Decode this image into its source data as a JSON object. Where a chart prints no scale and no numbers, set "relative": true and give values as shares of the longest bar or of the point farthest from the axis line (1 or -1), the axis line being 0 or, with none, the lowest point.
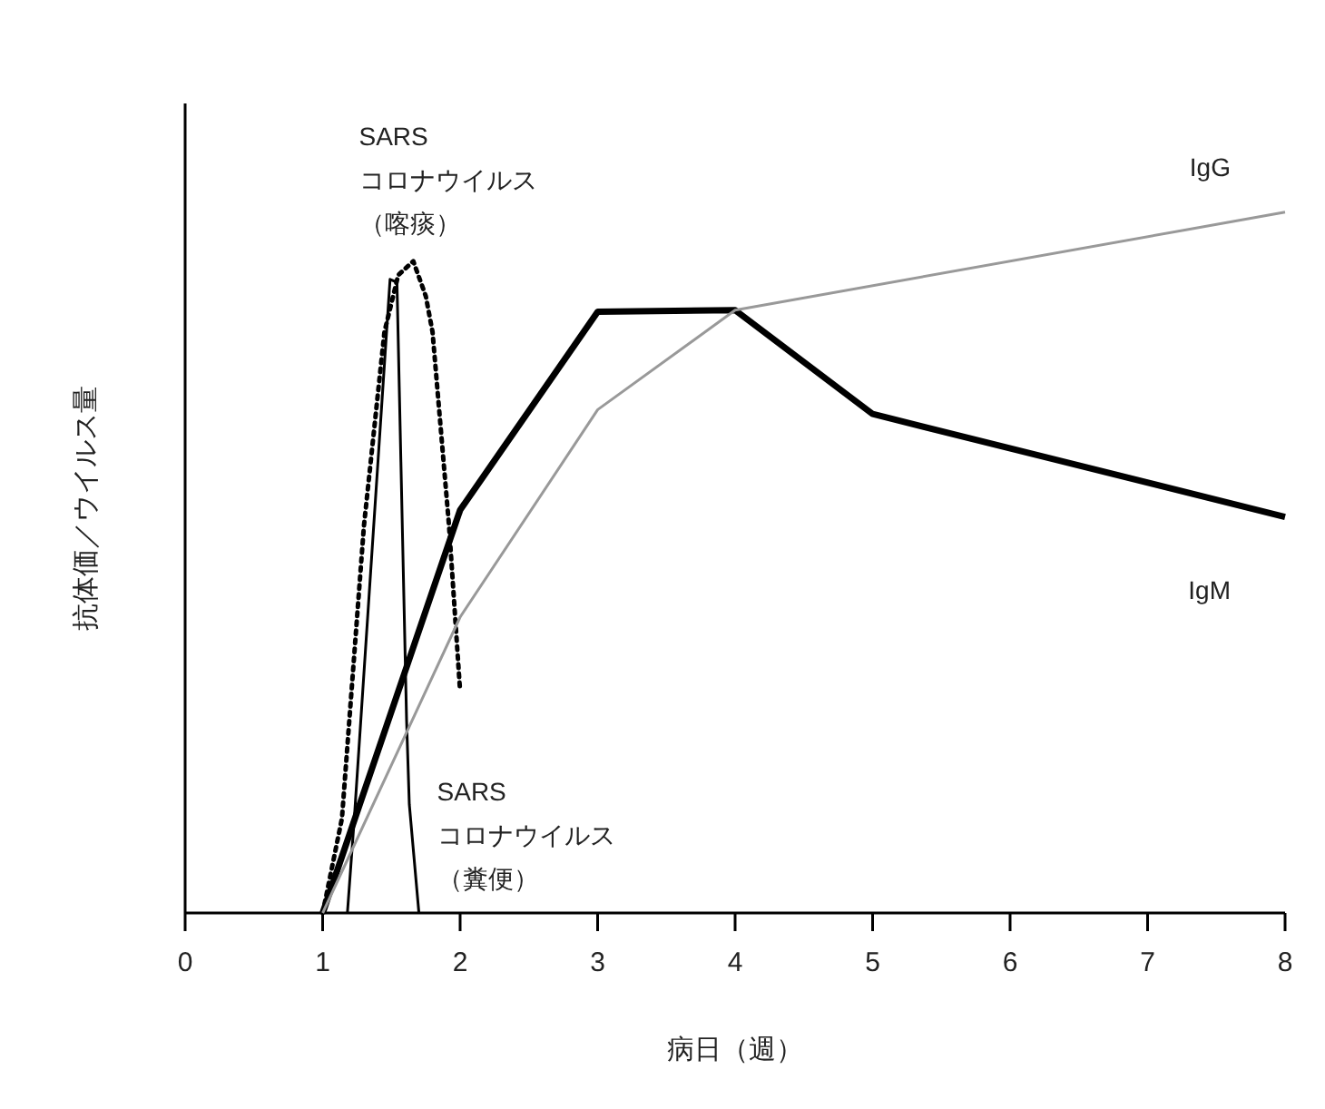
{
  "chart_data": {
    "type": "line",
    "relative": true,
    "xlabel": "病日（週）",
    "ylabel": "抗体価／ウイルス量",
    "xlim": [
      0,
      8
    ],
    "xticks": [
      0,
      1,
      2,
      3,
      4,
      5,
      6,
      7,
      8
    ],
    "grid": false,
    "marker": "none",
    "series": [
      {
        "name": "SARS\nコロナウイルス（喀痰）",
        "color": "#000000",
        "line_style": "dotted",
        "x": [
          1.0,
          1.14,
          1.3,
          1.45,
          1.55,
          1.66,
          1.75,
          1.8,
          1.92,
          2.0
        ],
        "values": [
          0,
          0.135,
          0.552,
          0.829,
          0.91,
          0.93,
          0.88,
          0.829,
          0.552,
          0.316
        ]
      },
      {
        "name": "SARS\nコロナウイルス（糞便）",
        "color": "#000000",
        "line_style": "solid",
        "x": [
          1.18,
          1.23,
          1.49,
          1.54,
          1.61,
          1.63,
          1.7
        ],
        "values": [
          0,
          0.135,
          0.904,
          0.9,
          0.275,
          0.155,
          0
        ]
      },
      {
        "name": "IgM",
        "color": "#000000",
        "line_style": "solid",
        "x": [
          1,
          2,
          3,
          4,
          5,
          8
        ],
        "values": [
          0,
          0.575,
          0.858,
          0.86,
          0.712,
          0.565
        ]
      },
      {
        "name": "IgG",
        "color": "#999999",
        "line_style": "solid",
        "x": [
          1,
          2,
          3,
          4,
          8
        ],
        "values": [
          0,
          0.422,
          0.718,
          0.86,
          1
        ]
      }
    ]
  }
}
